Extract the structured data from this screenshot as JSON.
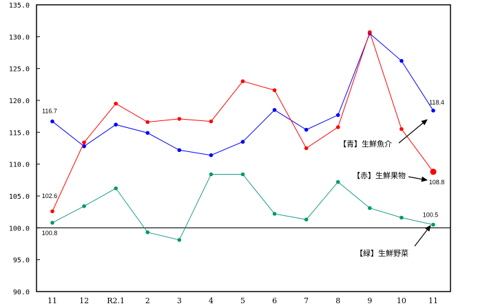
{
  "chart_data": {
    "type": "line",
    "title": "",
    "xlabel": "",
    "ylabel": "",
    "ylim": [
      90.0,
      135.0
    ],
    "yticks": [
      "135.0",
      "130.0",
      "125.0",
      "120.0",
      "115.0",
      "110.0",
      "105.0",
      "100.0",
      "95.0",
      "90.0"
    ],
    "categories": [
      "11",
      "12",
      "R2.1",
      "2",
      "3",
      "4",
      "5",
      "6",
      "7",
      "8",
      "9",
      "10",
      "11"
    ],
    "reference_line": 100.0,
    "grid": false,
    "series": [
      {
        "name": "【青】生鮮魚介",
        "color": "#0000ff",
        "values": [
          116.7,
          112.8,
          116.2,
          114.9,
          112.2,
          111.4,
          113.5,
          118.5,
          115.4,
          117.7,
          130.5,
          126.2,
          118.4
        ]
      },
      {
        "name": "【赤】生鮮果物",
        "color": "#ff0000",
        "values": [
          102.6,
          113.4,
          119.5,
          116.6,
          117.1,
          116.7,
          123.0,
          121.6,
          112.5,
          115.8,
          130.7,
          115.5,
          108.8
        ]
      },
      {
        "name": "【緑】生鮮野菜",
        "color": "#009966",
        "values": [
          100.8,
          103.4,
          106.2,
          99.3,
          98.1,
          108.4,
          108.4,
          102.2,
          101.3,
          107.2,
          103.1,
          101.6,
          100.5
        ]
      }
    ],
    "annotations": [
      {
        "text": "116.7",
        "series": 0,
        "index": 0
      },
      {
        "text": "102.6",
        "series": 1,
        "index": 0
      },
      {
        "text": "100.8",
        "series": 2,
        "index": 0
      },
      {
        "text": "118.4",
        "series": 0,
        "index": 12
      },
      {
        "text": "108.8",
        "series": 1,
        "index": 12
      },
      {
        "text": "100.5",
        "series": 2,
        "index": 12
      }
    ],
    "legend_labels": {
      "blue": "【青】生鮮魚介",
      "red": "【赤】生鮮果物",
      "green": "【緑】生鮮野菜"
    }
  }
}
